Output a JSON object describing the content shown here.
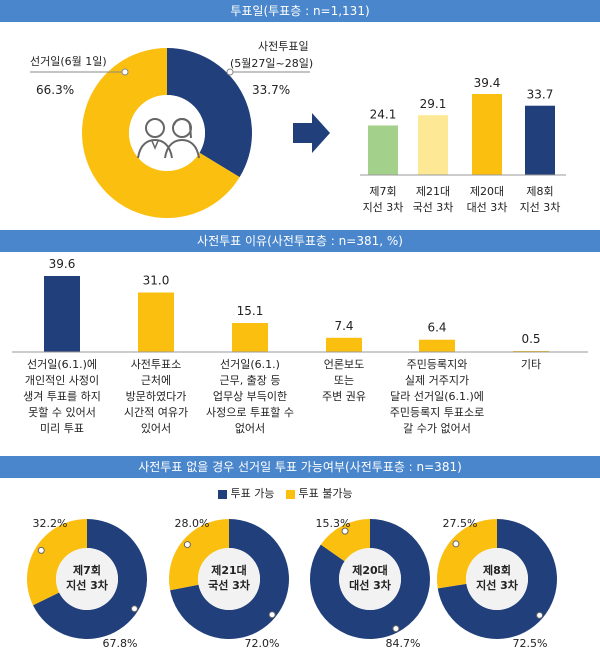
{
  "colors": {
    "navy": "#213f7a",
    "gold": "#fbbf0f",
    "green": "#a3d08a",
    "lightyellow": "#fde896",
    "band": "#4a86cc",
    "donut_bg": "#f2f2f2"
  },
  "section1": {
    "header": "투표일(투표층 : n=1,131)",
    "center_icon": "two-voters-icon",
    "arrow_icon": "right-arrow-icon"
  },
  "section2": {
    "header": "사전투표 이유(사전투표층 : n=381, %)"
  },
  "section3": {
    "header": "사전투표 없을 경우 선거일 투표 가능여부(사전투표층 : n=381)",
    "legend": [
      {
        "label": "투표 가능",
        "color": "#213f7a"
      },
      {
        "label": "투표 불가능",
        "color": "#fbbf0f"
      }
    ]
  },
  "chart_data": [
    {
      "type": "pie",
      "title": "",
      "slices": [
        {
          "label": "선거일(6월 1일)",
          "value": 66.3,
          "display": "66.3%",
          "color": "#fbbf0f"
        },
        {
          "label": "사전투표일 (5월27일~28일)",
          "label_line1": "사전투표일",
          "label_line2": "(5월27일~28일)",
          "value": 33.7,
          "display": "33.7%",
          "color": "#213f7a"
        }
      ]
    },
    {
      "type": "bar",
      "title": "",
      "categories": [
        [
          "제7회",
          "지선 3차"
        ],
        [
          "제21대",
          "국선 3차"
        ],
        [
          "제20대",
          "대선 3차"
        ],
        [
          "제8회",
          "지선 3차"
        ]
      ],
      "values": [
        24.1,
        29.1,
        39.4,
        33.7
      ],
      "labels": [
        "24.1",
        "29.1",
        "39.4",
        "33.7"
      ],
      "colors": [
        "#a3d08a",
        "#fde896",
        "#fbbf0f",
        "#213f7a"
      ],
      "ylim": [
        0,
        45
      ]
    },
    {
      "type": "bar",
      "title": "",
      "categories": [
        [
          "선거일(6.1.)에",
          "개인적인 사정이",
          "생겨 투표를 하지",
          "못할 수 있어서",
          "미리 투표"
        ],
        [
          "사전투표소",
          "근처에",
          "방문하였다가",
          "시간적 여유가",
          "있어서"
        ],
        [
          "선거일(6.1.)",
          "근무, 출장 등",
          "업무상 부득이한",
          "사정으로 투표할 수",
          "없어서"
        ],
        [
          "언론보도",
          "또는",
          "주변 권유"
        ],
        [
          "주민등록지와",
          "실제 거주지가",
          "달라 선거일(6.1.)에",
          "주민등록지 투표소로",
          "갈 수가 없어서"
        ],
        [
          "기타"
        ]
      ],
      "values": [
        39.6,
        31.0,
        15.1,
        7.4,
        6.4,
        0.5
      ],
      "labels": [
        "39.6",
        "31.0",
        "15.1",
        "7.4",
        "6.4",
        "0.5"
      ],
      "colors": [
        "#213f7a",
        "#fbbf0f",
        "#fbbf0f",
        "#fbbf0f",
        "#fbbf0f",
        "#fbbf0f"
      ],
      "ylim": [
        0,
        45
      ]
    },
    {
      "type": "pie",
      "title": "",
      "donuts": [
        {
          "center": [
            "제7회",
            "지선 3차"
          ],
          "possible": 67.8,
          "impossible": 32.2,
          "possible_label": "67.8%",
          "impossible_label": "32.2%"
        },
        {
          "center": [
            "제21대",
            "국선 3차"
          ],
          "possible": 72.0,
          "impossible": 28.0,
          "possible_label": "72.0%",
          "impossible_label": "28.0%"
        },
        {
          "center": [
            "제20대",
            "대선 3차"
          ],
          "possible": 84.7,
          "impossible": 15.3,
          "possible_label": "84.7%",
          "impossible_label": "15.3%"
        },
        {
          "center": [
            "제8회",
            "지선 3차"
          ],
          "possible": 72.5,
          "impossible": 27.5,
          "possible_label": "72.5%",
          "impossible_label": "27.5%"
        }
      ]
    }
  ]
}
